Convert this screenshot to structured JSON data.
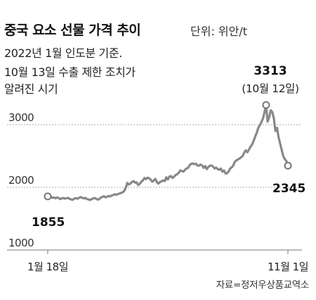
{
  "header": {
    "title": "중국 요소 선물 가격 추이",
    "unit": "단위: 위안/t",
    "notes": [
      "2022년 1월 인도분 기준.",
      "10월 13일 수출 제한 조치가",
      "알려진 시기"
    ]
  },
  "source": "자료=정저우상품교역소",
  "colors": {
    "line": "#888888",
    "grid": "#aaaaaa",
    "text": "#222222",
    "marker_fill": "#ffffff"
  },
  "chart_data": {
    "type": "line",
    "title": "중국 요소 선물 가격 추이",
    "ylabel": "단위: 위안/t",
    "ylim": [
      1000,
      3400
    ],
    "y_ticks": [
      1000,
      2000,
      3000
    ],
    "x_tick_labels": [
      "1월 18일",
      "11월 1일"
    ],
    "grid": true,
    "annotations": [
      {
        "label": "1855",
        "date": "1월 18일"
      },
      {
        "label": "3313",
        "sublabel": "(10월 12일)",
        "date": "10월 12일"
      },
      {
        "label": "2345",
        "date": "11월 1일"
      }
    ],
    "series": [
      {
        "values": [
          1855,
          1845,
          1850,
          1832,
          1840,
          1825,
          1838,
          1830,
          1812,
          1822,
          1830,
          1820,
          1826,
          1832,
          1815,
          1808,
          1800,
          1820,
          1828,
          1818,
          1830,
          1845,
          1835,
          1822,
          1832,
          1815,
          1808,
          1798,
          1810,
          1822,
          1830,
          1818,
          1805,
          1812,
          1835,
          1848,
          1858,
          1840,
          1850,
          1862,
          1855,
          1870,
          1876,
          1890,
          1880,
          1892,
          1900,
          1910,
          1920,
          1940,
          1990,
          2070,
          2045,
          2060,
          2085,
          2100,
          2075,
          2080,
          2035,
          2055,
          2090,
          2110,
          2150,
          2130,
          2155,
          2145,
          2120,
          2090,
          2110,
          2135,
          2080,
          2060,
          2085,
          2095,
          2110,
          2100,
          2160,
          2125,
          2170,
          2180,
          2150,
          2170,
          2195,
          2210,
          2230,
          2270,
          2260,
          2250,
          2280,
          2300,
          2310,
          2355,
          2375,
          2380,
          2370,
          2378,
          2350,
          2345,
          2362,
          2348,
          2310,
          2340,
          2290,
          2325,
          2345,
          2350,
          2330,
          2300,
          2315,
          2290,
          2280,
          2300,
          2250,
          2270,
          2220,
          2225,
          2255,
          2300,
          2320,
          2350,
          2410,
          2430,
          2445,
          2460,
          2480,
          2500,
          2555,
          2590,
          2560,
          2600,
          2650,
          2680,
          2740,
          2810,
          2870,
          2950,
          2990,
          3040,
          3100,
          3200,
          3313,
          3050,
          3120,
          3230,
          3200,
          3100,
          2900,
          2950,
          2800,
          2700,
          2600,
          2500,
          2450,
          2420,
          2345
        ]
      }
    ]
  }
}
